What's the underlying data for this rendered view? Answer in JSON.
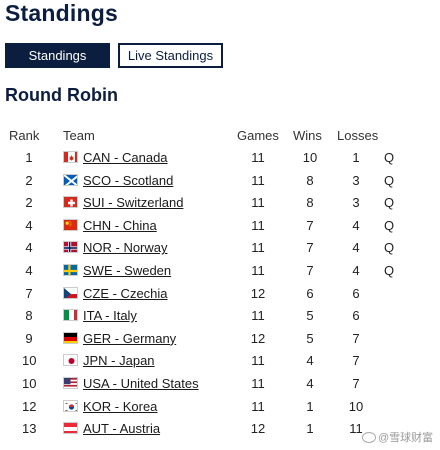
{
  "page": {
    "title": "Standings"
  },
  "tabs": [
    {
      "label": "Standings",
      "active": true
    },
    {
      "label": "Live Standings",
      "active": false
    }
  ],
  "section": {
    "title": "Round Robin"
  },
  "columns": {
    "rank": "Rank",
    "team": "Team",
    "games": "Games",
    "wins": "Wins",
    "losses": "Losses"
  },
  "rows": [
    {
      "rank": "1",
      "team": "CAN - Canada",
      "flag": "flag-canada-icon",
      "games": "11",
      "wins": "10",
      "losses": "1",
      "q": "Q"
    },
    {
      "rank": "2",
      "team": "SCO - Scotland",
      "flag": "flag-scotland-icon",
      "games": "11",
      "wins": "8",
      "losses": "3",
      "q": "Q"
    },
    {
      "rank": "2",
      "team": "SUI - Switzerland",
      "flag": "flag-switzerland-icon",
      "games": "11",
      "wins": "8",
      "losses": "3",
      "q": "Q"
    },
    {
      "rank": "4",
      "team": "CHN - China",
      "flag": "flag-china-icon",
      "games": "11",
      "wins": "7",
      "losses": "4",
      "q": "Q"
    },
    {
      "rank": "4",
      "team": "NOR - Norway",
      "flag": "flag-norway-icon",
      "games": "11",
      "wins": "7",
      "losses": "4",
      "q": "Q"
    },
    {
      "rank": "4",
      "team": "SWE - Sweden",
      "flag": "flag-sweden-icon",
      "games": "11",
      "wins": "7",
      "losses": "4",
      "q": "Q"
    },
    {
      "rank": "7",
      "team": "CZE - Czechia",
      "flag": "flag-czechia-icon",
      "games": "12",
      "wins": "6",
      "losses": "6",
      "q": ""
    },
    {
      "rank": "8",
      "team": "ITA - Italy",
      "flag": "flag-italy-icon",
      "games": "11",
      "wins": "5",
      "losses": "6",
      "q": ""
    },
    {
      "rank": "9",
      "team": "GER - Germany",
      "flag": "flag-germany-icon",
      "games": "12",
      "wins": "5",
      "losses": "7",
      "q": ""
    },
    {
      "rank": "10",
      "team": "JPN - Japan",
      "flag": "flag-japan-icon",
      "games": "11",
      "wins": "4",
      "losses": "7",
      "q": ""
    },
    {
      "rank": "10",
      "team": "USA - United States",
      "flag": "flag-usa-icon",
      "games": "11",
      "wins": "4",
      "losses": "7",
      "q": ""
    },
    {
      "rank": "12",
      "team": "KOR - Korea",
      "flag": "flag-korea-icon",
      "games": "11",
      "wins": "1",
      "losses": "10",
      "q": ""
    },
    {
      "rank": "13",
      "team": "AUT - Austria",
      "flag": "flag-austria-icon",
      "games": "12",
      "wins": "1",
      "losses": "11",
      "q": ""
    }
  ],
  "watermark": {
    "text": "@雪球财富"
  },
  "colors": {
    "primary": "#0b1e3f"
  }
}
